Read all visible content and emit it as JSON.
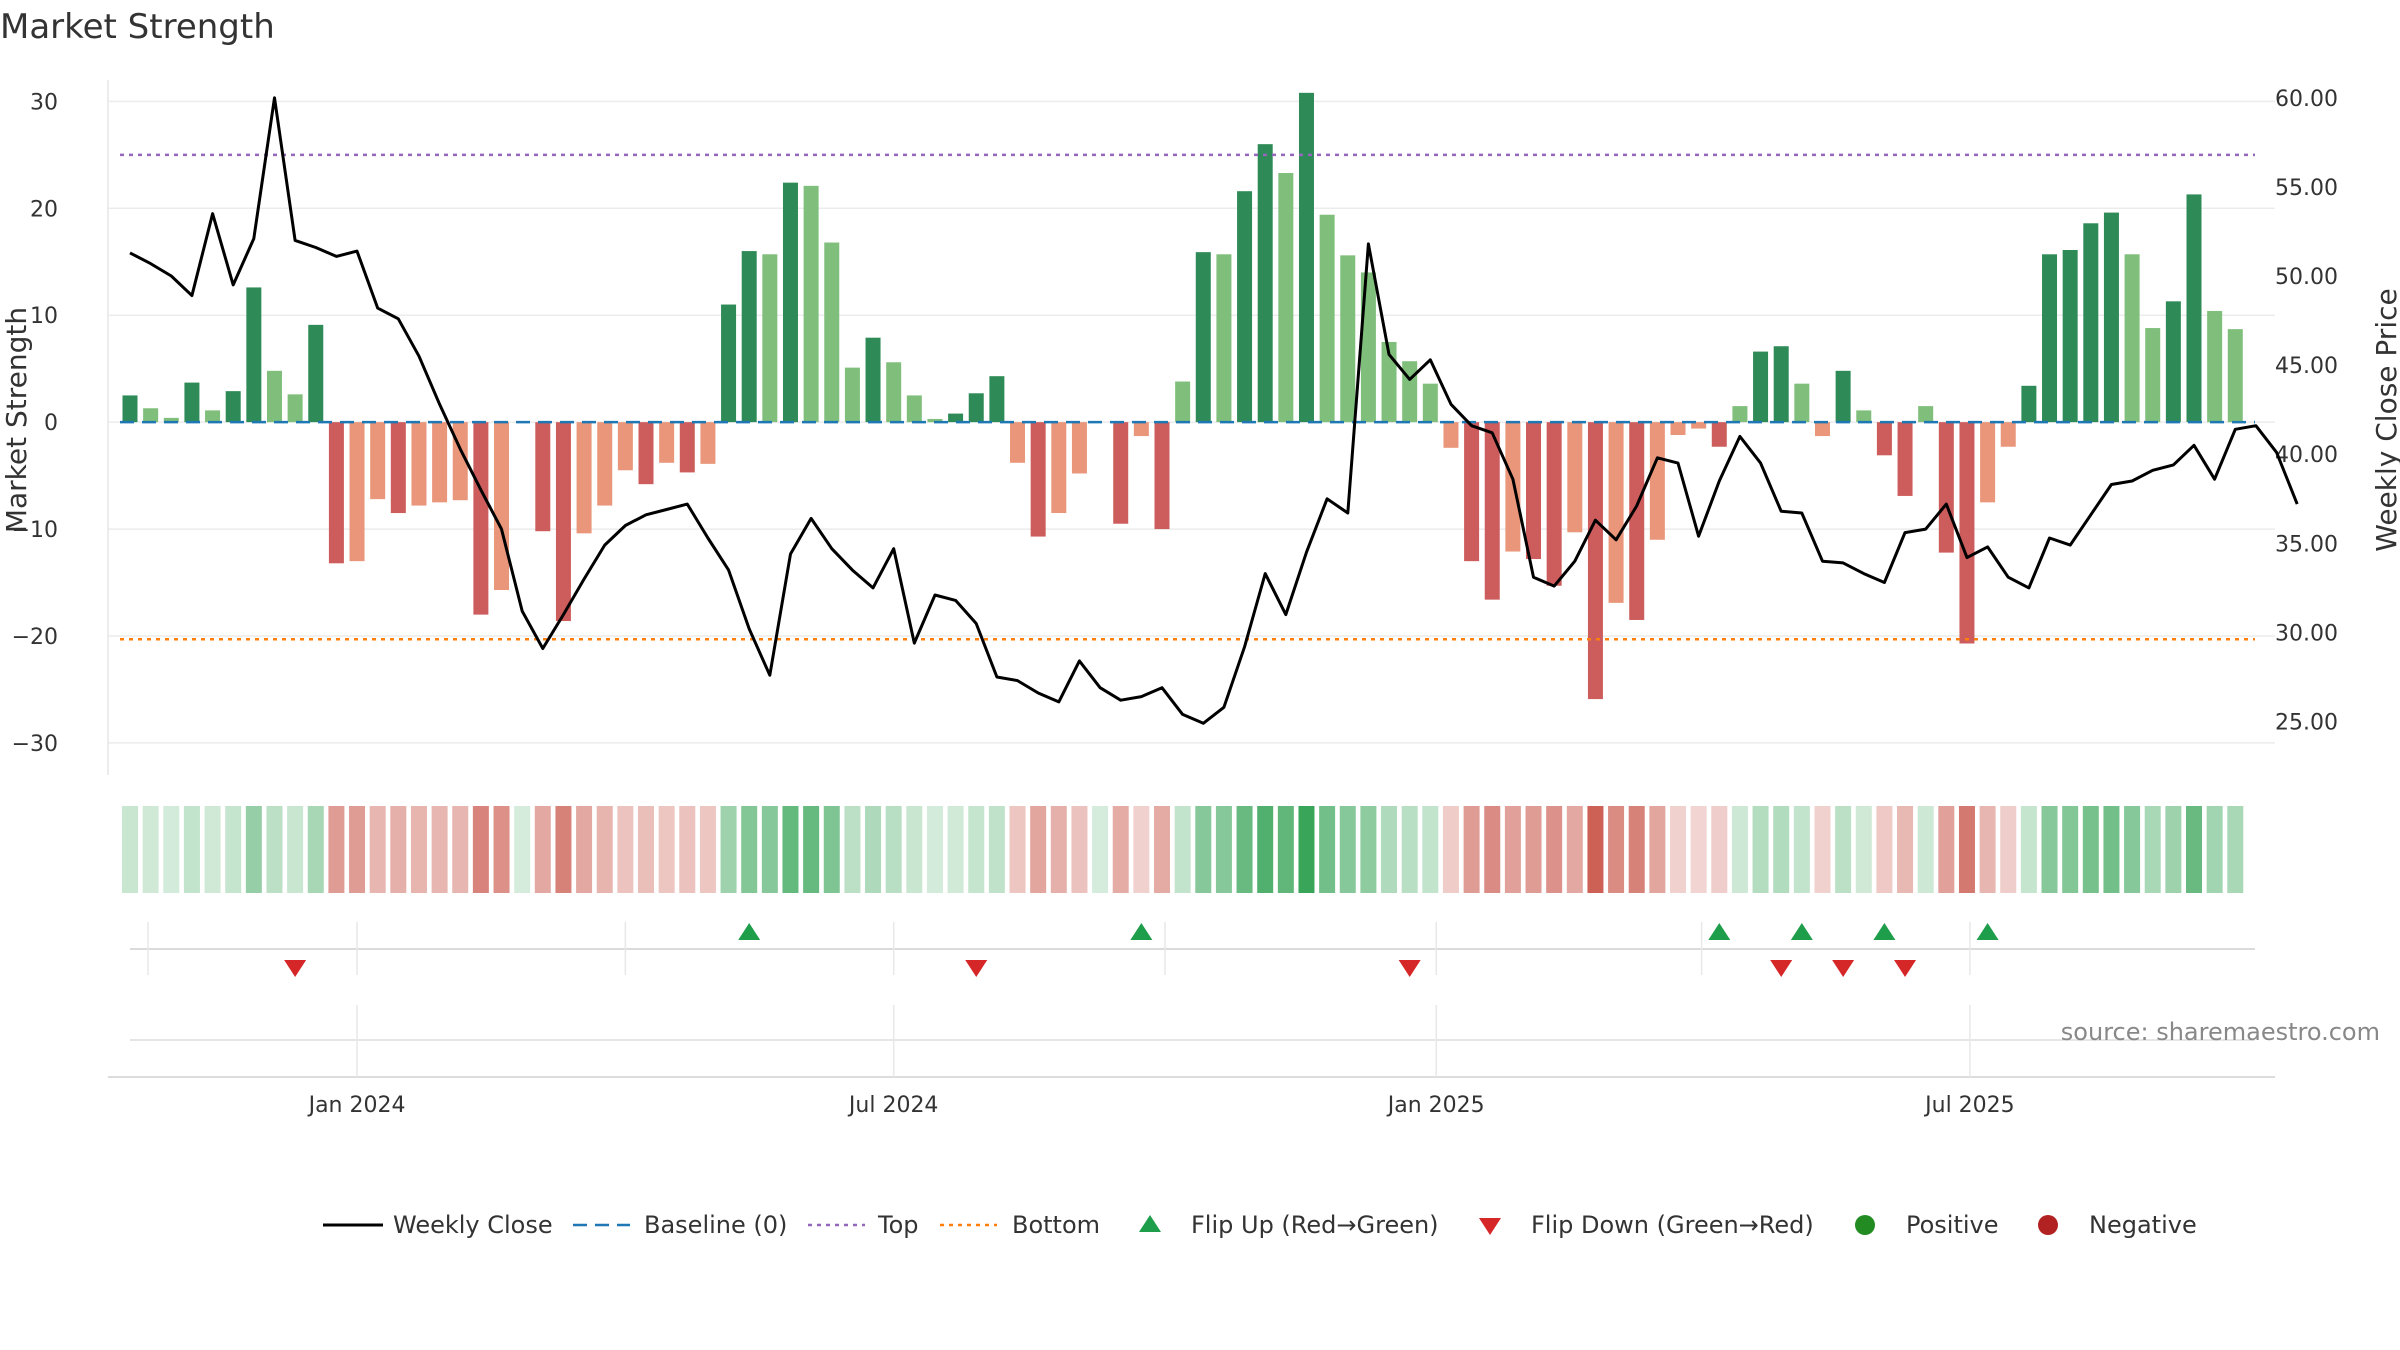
{
  "chart_data": {
    "type": "bar",
    "title": "Market Strength",
    "ylabel": "Market Strength",
    "y2label": "Weekly Close Price",
    "ylim": [
      -33,
      32
    ],
    "y2lim": [
      22.0,
      61.0
    ],
    "yticks": [
      30,
      20,
      10,
      0,
      -10,
      -20,
      -30
    ],
    "y2ticks": [
      "60.00",
      "55.00",
      "50.00",
      "45.00",
      "40.00",
      "35.00",
      "30.00",
      "25.00"
    ],
    "x_start": "2023-10-16",
    "x_axis_end": "2025-09-15",
    "xticks": [
      {
        "date": "2024-01-01",
        "label": "Jan 2024"
      },
      {
        "date": "2024-07-01",
        "label": "Jul 2024"
      },
      {
        "date": "2025-01-01",
        "label": "Jan 2025"
      },
      {
        "date": "2025-07-01",
        "label": "Jul 2025"
      }
    ],
    "top_line": 25,
    "bottom_line": -20.3,
    "baseline": 0,
    "strength": [
      2.5,
      1.3,
      0.4,
      3.7,
      1.1,
      2.9,
      12.6,
      4.8,
      2.6,
      9.1,
      -13.2,
      -13.0,
      -7.2,
      -8.5,
      -7.8,
      -7.5,
      -7.3,
      -18.0,
      -15.7,
      0,
      -10.2,
      -18.6,
      -10.4,
      -7.8,
      -4.5,
      -5.8,
      -3.8,
      -4.7,
      -3.9,
      11.0,
      16.0,
      15.7,
      22.4,
      22.1,
      16.8,
      5.1,
      7.9,
      5.6,
      2.5,
      0.3,
      0.8,
      2.7,
      4.3,
      -3.8,
      -10.7,
      -8.5,
      -4.8,
      0,
      -9.5,
      -1.3,
      -10.0,
      3.8,
      15.9,
      15.7,
      21.6,
      26.0,
      23.3,
      30.8,
      19.4,
      15.6,
      14.0,
      7.5,
      5.7,
      3.6,
      -2.4,
      -13.0,
      -16.6,
      -12.1,
      -12.8,
      -15.3,
      -10.3,
      -25.9,
      -16.9,
      -18.5,
      -11.0,
      -1.2,
      -0.6,
      -2.3,
      1.5,
      6.6,
      7.1,
      3.6,
      -1.3,
      4.8,
      1.1,
      -3.1,
      -6.9,
      1.5,
      -12.2,
      -20.7,
      -7.5,
      -2.3,
      3.4,
      15.7,
      16.1,
      18.6,
      19.6,
      15.7,
      8.8,
      11.3,
      21.3,
      10.4,
      8.7
    ],
    "closes": [
      51.3,
      50.7,
      50.0,
      48.9,
      53.5,
      49.5,
      52.1,
      60.0,
      52.0,
      51.6,
      51.1,
      51.4,
      48.2,
      47.6,
      45.5,
      42.8,
      40.3,
      38.0,
      35.8,
      31.2,
      29.1,
      31.0,
      33.0,
      34.9,
      36.0,
      36.6,
      36.9,
      37.2,
      35.3,
      33.5,
      30.2,
      27.6,
      34.4,
      36.4,
      34.7,
      33.5,
      32.5,
      34.7,
      29.4,
      32.1,
      31.8,
      30.5,
      27.5,
      27.3,
      26.6,
      26.1,
      28.4,
      26.9,
      26.2,
      26.4,
      26.9,
      25.4,
      24.9,
      25.8,
      29.2,
      33.3,
      31.0,
      34.5,
      37.5,
      36.7,
      51.8,
      45.6,
      44.2,
      45.3,
      42.8,
      41.6,
      41.2,
      38.6,
      33.1,
      32.6,
      34.0,
      36.3,
      35.2,
      37.1,
      39.8,
      39.5,
      35.4,
      38.5,
      41.0,
      39.5,
      36.8,
      36.7,
      34.0,
      33.9,
      33.3,
      32.8,
      35.6,
      35.8,
      37.2,
      34.2,
      34.8,
      33.1,
      32.5,
      35.3,
      34.9,
      36.6,
      38.3,
      38.5,
      39.1,
      39.4,
      40.5,
      38.6,
      41.4,
      41.6,
      40.1,
      37.2
    ],
    "flips_up": [
      "2024-05-13",
      "2024-09-23",
      "2025-04-07",
      "2025-05-05",
      "2025-06-02",
      "2025-07-07"
    ],
    "flips_down": [
      "2023-12-11",
      "2024-07-29",
      "2024-12-23",
      "2025-04-28",
      "2025-05-19",
      "2025-06-09"
    ],
    "legend": [
      "Weekly Close",
      "Baseline (0)",
      "Top",
      "Bottom",
      "Flip Up (Red→Green)",
      "Flip Down (Green→Red)",
      "Positive",
      "Negative"
    ],
    "legend_placement": "bottom",
    "colors": {
      "pos_dark": "#2e8b57",
      "pos_light": "#7fbf7b",
      "neg_dark": "#cd5c5c",
      "neg_light": "#e9967a",
      "price_line": "#000000",
      "baseline": "#1f77b4",
      "top": "#9467bd",
      "bottom": "#ff7f0e",
      "flip_up": "#1e9e4a",
      "flip_down": "#d62728",
      "positive_dot": "#228b22",
      "negative_dot": "#b22222"
    }
  },
  "source": "source: sharemaestro.com"
}
